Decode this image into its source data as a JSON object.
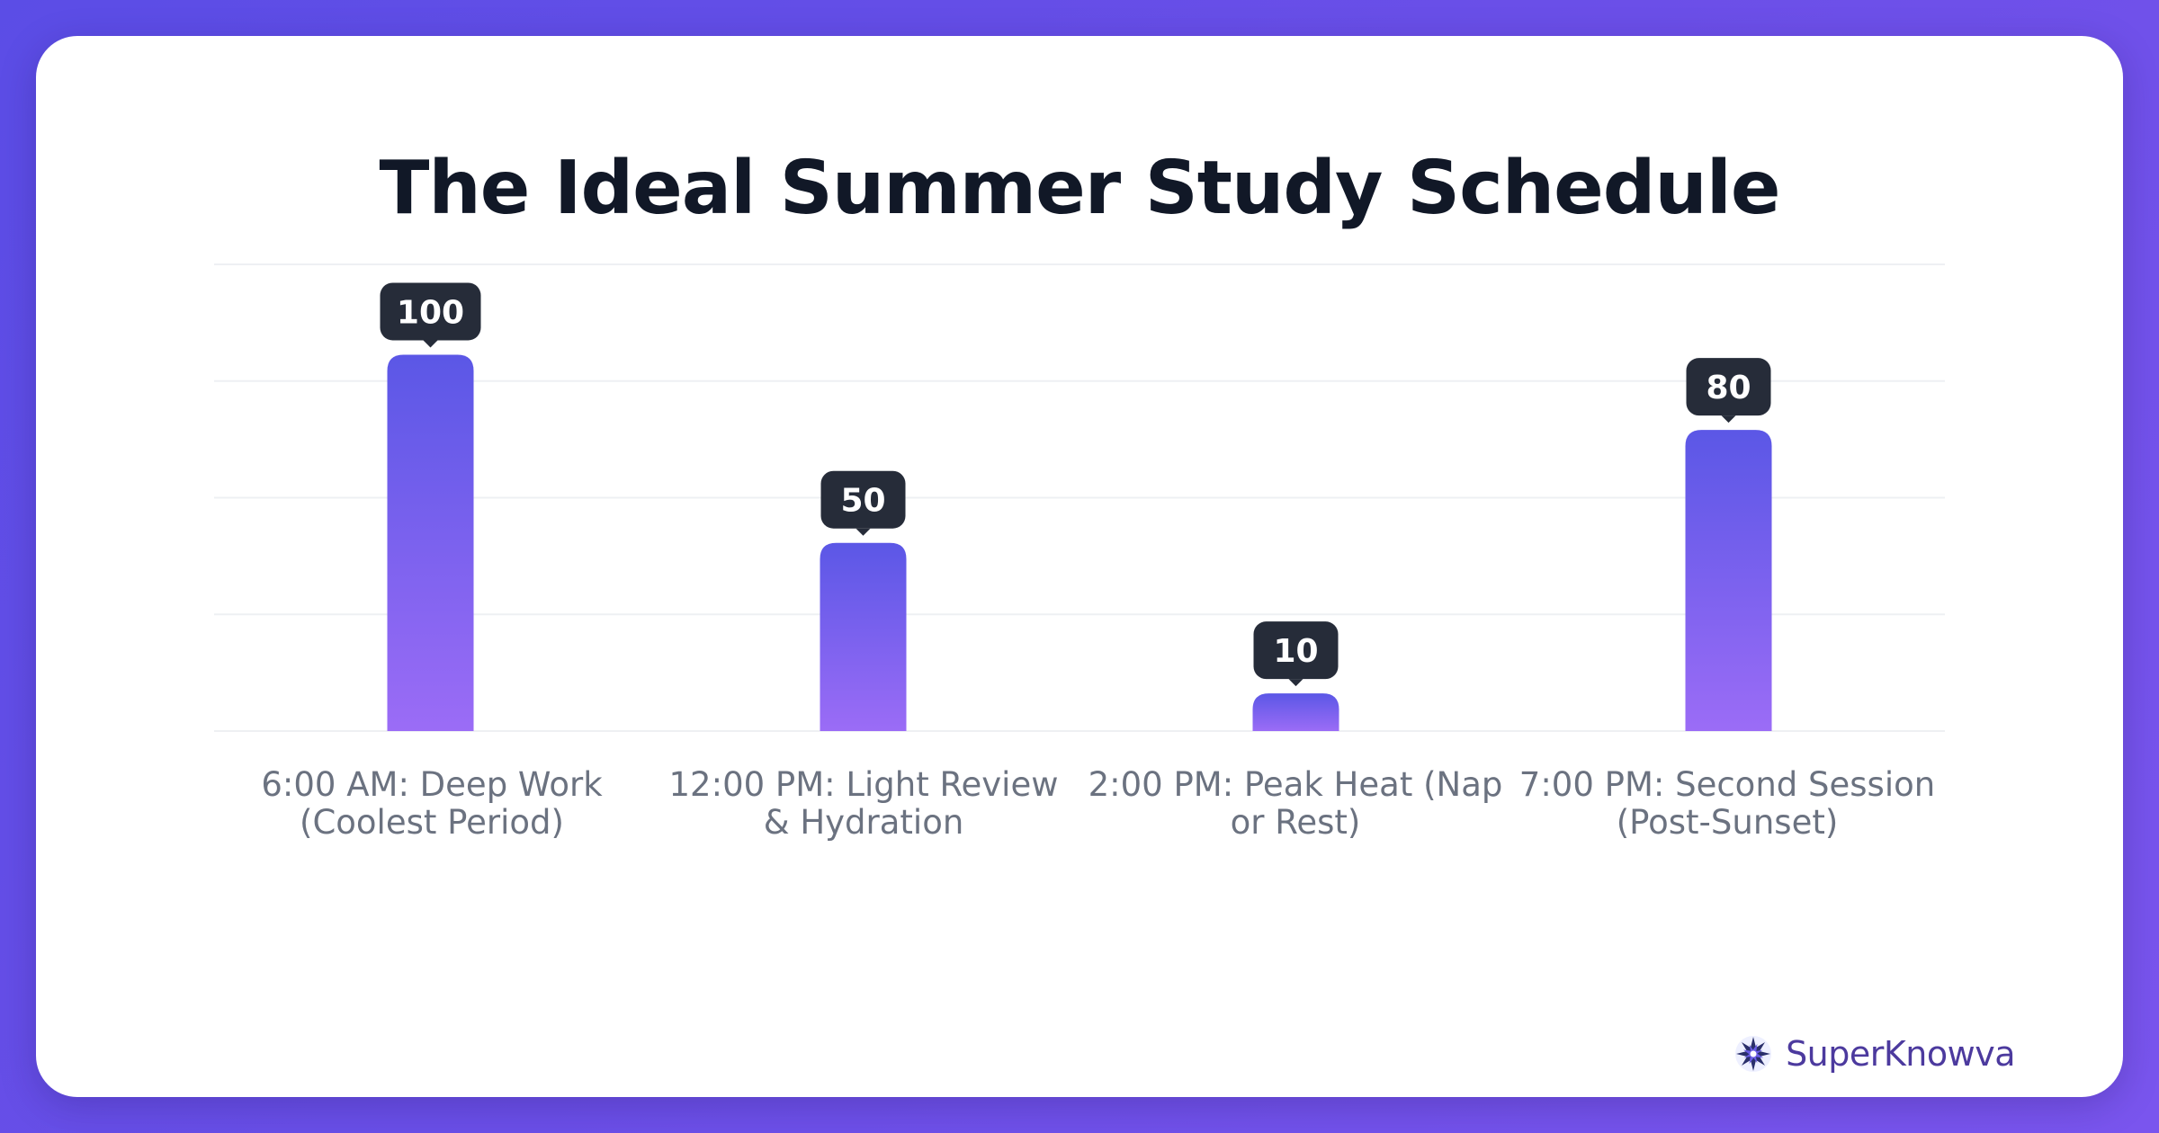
{
  "chart_data": {
    "type": "bar",
    "title": "The Ideal Summer Study Schedule",
    "categories": [
      "6:00 AM: Deep Work (Coolest Period)",
      "12:00 PM: Light Review & Hydration",
      "2:00 PM: Peak Heat (Nap or Rest)",
      "7:00 PM: Second Session (Post-Sunset)"
    ],
    "values": [
      100,
      50,
      10,
      80
    ],
    "data_labels": [
      "100",
      "50",
      "10",
      "80"
    ],
    "ylim": [
      0,
      124
    ],
    "grid": true,
    "bar_gradient": {
      "top": "#5b57e6",
      "bottom": "#9b6cf6"
    },
    "label_bg": "#262c39"
  },
  "brand": {
    "name": "SuperKnowva",
    "logo_icon": "starburst-logo-icon",
    "color": "#4c3a9e"
  }
}
